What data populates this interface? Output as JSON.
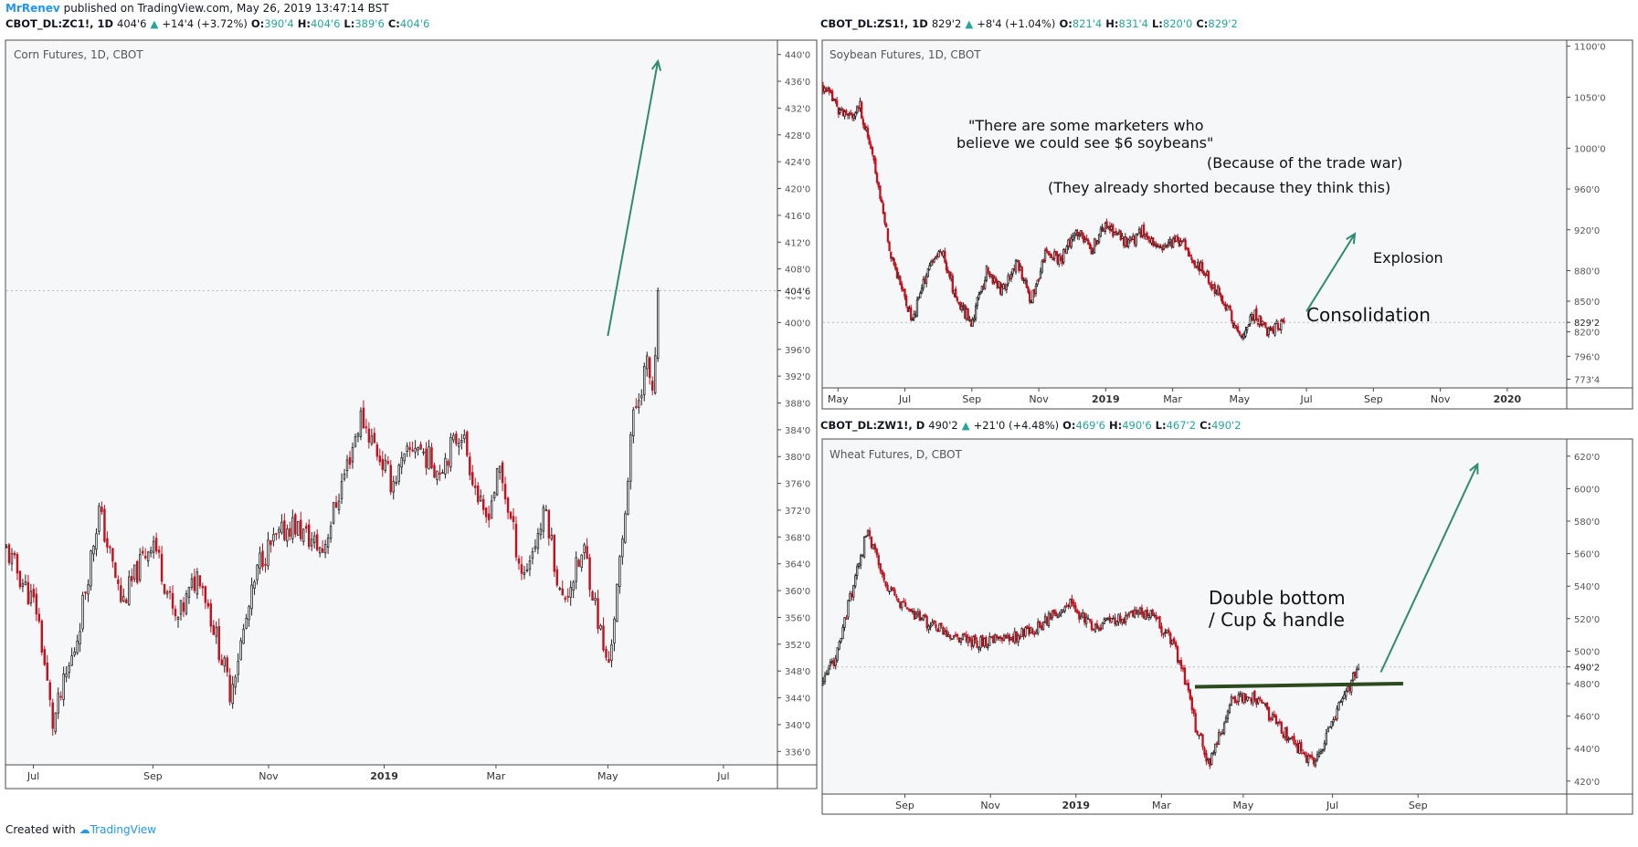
{
  "header": {
    "author": "MrRenev",
    "published_text": "published on TradingView.com, May 26, 2019 13:47:14 BST"
  },
  "footer": {
    "created_with": "Created with",
    "brand": "TradingView"
  },
  "colors": {
    "up": "#26a69a",
    "down": "#c1121f",
    "annotation": "#2e8b70",
    "support": "#2d4a1f"
  },
  "panels": {
    "corn": {
      "symbol": "CBOT_DL:ZC1!, 1D",
      "last": "404'6",
      "change": "+14'4 (+3.72%)",
      "open_label": "O:",
      "open": "390'4",
      "high_label": "H:",
      "high": "404'6",
      "low_label": "L:",
      "low": "389'6",
      "close_label": "C:",
      "close": "404'6",
      "title": "Corn Futures, 1D, CBOT",
      "last_label": "404'6"
    },
    "soy": {
      "symbol": "CBOT_DL:ZS1!, 1D",
      "last": "829'2",
      "change": "+8'4 (+1.04%)",
      "open_label": "O:",
      "open": "821'4",
      "high_label": "H:",
      "high": "831'4",
      "low_label": "L:",
      "low": "820'0",
      "close_label": "C:",
      "close": "829'2",
      "title": "Soybean Futures, 1D, CBOT",
      "last_label": "829'2",
      "annotations": {
        "quote1": "\"There are some marketers who",
        "quote2": "believe we could see $6 soybeans\"",
        "because": "(Because of the trade war)",
        "shorted": "(They already shorted because they think this)",
        "explosion": "Explosion",
        "consolidation": "Consolidation"
      }
    },
    "wheat": {
      "symbol": "CBOT_DL:ZW1!, D",
      "last": "490'2",
      "change": "+21'0 (+4.48%)",
      "open_label": "O:",
      "open": "469'6",
      "high_label": "H:",
      "high": "490'6",
      "low_label": "L:",
      "low": "467'2",
      "close_label": "C:",
      "close": "490'2",
      "title": "Wheat Futures, D, CBOT",
      "last_label": "490'2",
      "annotations": {
        "line1": "Double bottom",
        "line2": "/ Cup & handle"
      }
    }
  },
  "chart_data": [
    {
      "type": "candlestick",
      "title": "Corn Futures, 1D, CBOT",
      "x_ticks": [
        "Jul",
        "Sep",
        "Nov",
        "2019",
        "Mar",
        "May",
        "Jul"
      ],
      "y_ticks": [
        "336'0",
        "340'0",
        "344'0",
        "348'0",
        "352'0",
        "356'0",
        "360'0",
        "364'0",
        "368'0",
        "372'0",
        "376'0",
        "380'0",
        "384'0",
        "388'0",
        "392'0",
        "396'0",
        "400'0",
        "404'0",
        "408'0",
        "412'0",
        "416'0",
        "420'0",
        "424'0",
        "428'0",
        "432'0",
        "436'0",
        "440'0"
      ],
      "y_values": [
        336,
        340,
        344,
        348,
        352,
        356,
        360,
        364,
        368,
        372,
        376,
        380,
        384,
        388,
        392,
        396,
        400,
        404,
        408,
        412,
        416,
        420,
        424,
        428,
        432,
        436,
        440
      ],
      "ylim": [
        334,
        442
      ],
      "price_path_x": [
        0,
        0.04,
        0.06,
        0.09,
        0.12,
        0.15,
        0.19,
        0.22,
        0.25,
        0.29,
        0.33,
        0.37,
        0.41,
        0.43,
        0.46,
        0.5,
        0.53,
        0.56,
        0.59,
        0.62,
        0.64,
        0.67,
        0.7,
        0.72,
        0.75,
        0.78,
        0.8,
        0.81,
        0.83,
        0.84,
        0.845
      ],
      "price_path_y": [
        366,
        357,
        340,
        352,
        372,
        358,
        368,
        355,
        363,
        345,
        365,
        370,
        366,
        374,
        386,
        376,
        382,
        378,
        384,
        370,
        378,
        362,
        372,
        358,
        366,
        348,
        368,
        384,
        394,
        389,
        404.75
      ],
      "last_price": 404.75,
      "arrow": {
        "from": [
          0.78,
          398
        ],
        "to": [
          0.845,
          439
        ]
      }
    },
    {
      "type": "candlestick",
      "title": "Soybean Futures, 1D, CBOT",
      "x_ticks": [
        "May",
        "Jul",
        "Sep",
        "Nov",
        "2019",
        "Mar",
        "May",
        "Jul",
        "Sep",
        "Nov",
        "2020"
      ],
      "y_ticks": [
        "773'4",
        "796'0",
        "820'0",
        "850'0",
        "880'0",
        "920'0",
        "960'0",
        "1000'0",
        "1050'0",
        "1100'0"
      ],
      "y_values": [
        773.5,
        796,
        820,
        850,
        880,
        920,
        960,
        1000,
        1050,
        1100
      ],
      "ylim": [
        765,
        1105
      ],
      "price_path_x": [
        0,
        0.03,
        0.05,
        0.07,
        0.09,
        0.12,
        0.14,
        0.16,
        0.18,
        0.2,
        0.22,
        0.24,
        0.26,
        0.28,
        0.3,
        0.32,
        0.34,
        0.36,
        0.38,
        0.41,
        0.43,
        0.45,
        0.48,
        0.51,
        0.54,
        0.56,
        0.58,
        0.6,
        0.61,
        0.62
      ],
      "price_path_y": [
        1060,
        1030,
        1040,
        980,
        900,
        830,
        880,
        900,
        850,
        830,
        880,
        860,
        890,
        850,
        900,
        890,
        920,
        900,
        925,
        905,
        920,
        900,
        910,
        880,
        850,
        815,
        838,
        818,
        825,
        829.25
      ],
      "last_price": 829.25,
      "arrow": {
        "from": [
          0.65,
          840
        ],
        "to": [
          0.715,
          916
        ]
      }
    },
    {
      "type": "candlestick",
      "title": "Wheat Futures, D, CBOT",
      "x_ticks": [
        "Sep",
        "Nov",
        "2019",
        "Mar",
        "May",
        "Jul",
        "Sep"
      ],
      "y_ticks": [
        "420'0",
        "440'0",
        "460'0",
        "480'0",
        "500'0",
        "520'0",
        "540'0",
        "560'0",
        "580'0",
        "600'0",
        "620'0"
      ],
      "y_values": [
        420,
        440,
        460,
        480,
        500,
        520,
        540,
        560,
        580,
        600,
        620
      ],
      "ylim": [
        412,
        630
      ],
      "price_path_x": [
        0,
        0.02,
        0.04,
        0.06,
        0.08,
        0.1,
        0.13,
        0.17,
        0.21,
        0.25,
        0.29,
        0.33,
        0.36,
        0.4,
        0.44,
        0.47,
        0.49,
        0.5,
        0.52,
        0.55,
        0.58,
        0.61,
        0.64,
        0.66,
        0.68,
        0.7,
        0.71,
        0.72
      ],
      "price_path_y": [
        480,
        500,
        540,
        575,
        545,
        530,
        520,
        510,
        505,
        508,
        515,
        530,
        515,
        520,
        525,
        505,
        478,
        455,
        430,
        470,
        472,
        455,
        440,
        430,
        450,
        472,
        480,
        490.25
      ],
      "last_price": 490.25,
      "support_line": {
        "from": [
          0.5,
          478
        ],
        "to": [
          0.78,
          480
        ]
      },
      "arrow": {
        "from": [
          0.75,
          487
        ],
        "to": [
          0.88,
          615
        ]
      }
    }
  ]
}
